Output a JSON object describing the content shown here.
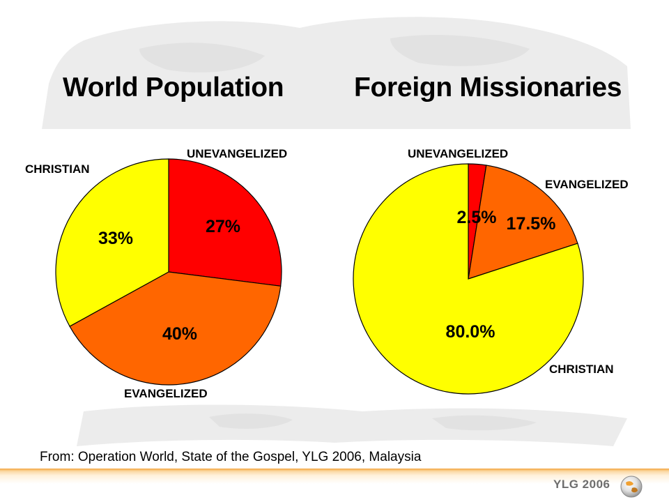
{
  "chart_data": [
    {
      "type": "pie",
      "title": "World Population",
      "slices": [
        {
          "label": "UNEVANGELIZED",
          "value": 27,
          "value_label": "27%",
          "color": "#ff0000"
        },
        {
          "label": "EVANGELIZED",
          "value": 40,
          "value_label": "40%",
          "color": "#ff6600"
        },
        {
          "label": "CHRISTIAN",
          "value": 33,
          "value_label": "33%",
          "color": "#ffff00"
        }
      ]
    },
    {
      "type": "pie",
      "title": "Foreign Missionaries",
      "slices": [
        {
          "label": "UNEVANGELIZED",
          "value": 2.5,
          "value_label": "2.5%",
          "color": "#ff0000"
        },
        {
          "label": "EVANGELIZED",
          "value": 17.5,
          "value_label": "17.5%",
          "color": "#ff6600"
        },
        {
          "label": "CHRISTIAN",
          "value": 80.0,
          "value_label": "80.0%",
          "color": "#ffff00"
        }
      ]
    }
  ],
  "source": "From:  Operation World, State of the Gospel, YLG 2006, Malaysia",
  "footer": {
    "logo_text": "YLG 2006",
    "accent_color": "#f4a640"
  },
  "icons": {
    "footer": "globe-icon"
  }
}
